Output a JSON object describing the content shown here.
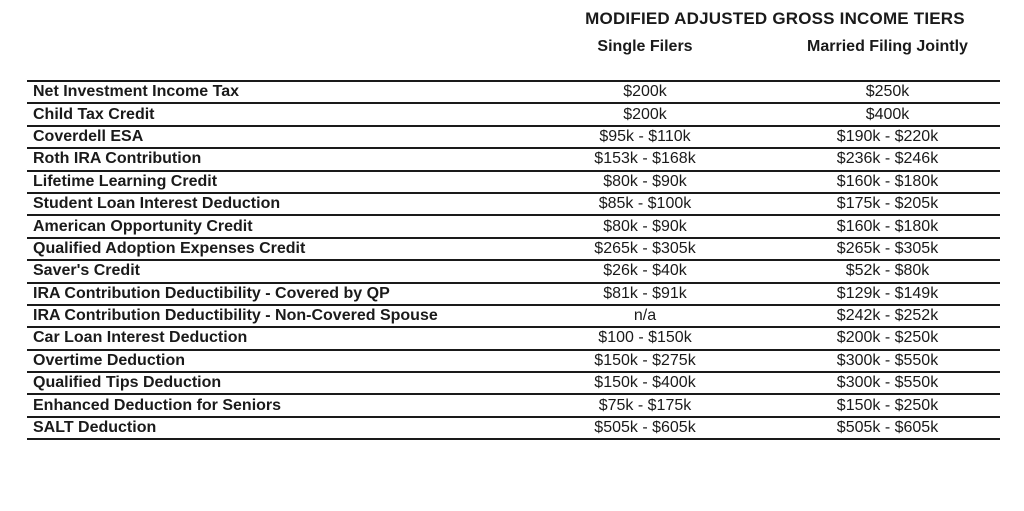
{
  "header": {
    "title": "MODIFIED ADJUSTED GROSS INCOME TIERS",
    "columns": [
      "Single Filers",
      "Married Filing Jointly"
    ]
  },
  "table": {
    "column_keys": [
      "label",
      "single",
      "married"
    ],
    "rows": [
      {
        "label": "Net Investment Income Tax",
        "single": "$200k",
        "married": "$250k"
      },
      {
        "label": "Child Tax Credit",
        "single": "$200k",
        "married": "$400k"
      },
      {
        "label": "Coverdell ESA",
        "single": "$95k - $110k",
        "married": "$190k - $220k"
      },
      {
        "label": "Roth IRA Contribution",
        "single": "$153k - $168k",
        "married": "$236k - $246k"
      },
      {
        "label": "Lifetime Learning Credit",
        "single": "$80k - $90k",
        "married": "$160k - $180k"
      },
      {
        "label": "Student Loan Interest Deduction",
        "single": "$85k - $100k",
        "married": "$175k - $205k"
      },
      {
        "label": "American Opportunity Credit",
        "single": "$80k - $90k",
        "married": "$160k - $180k"
      },
      {
        "label": "Qualified Adoption Expenses Credit",
        "single": "$265k - $305k",
        "married": "$265k - $305k"
      },
      {
        "label": "Saver's Credit",
        "single": "$26k - $40k",
        "married": "$52k - $80k"
      },
      {
        "label": "IRA Contribution Deductibility - Covered by QP",
        "single": "$81k - $91k",
        "married": "$129k - $149k"
      },
      {
        "label": "IRA Contribution Deductibility - Non-Covered Spouse",
        "single": "n/a",
        "married": "$242k - $252k"
      },
      {
        "label": "Car Loan Interest Deduction",
        "single": "$100 - $150k",
        "married": "$200k - $250k"
      },
      {
        "label": "Overtime Deduction",
        "single": "$150k - $275k",
        "married": "$300k - $550k"
      },
      {
        "label": "Qualified Tips Deduction",
        "single": "$150k - $400k",
        "married": "$300k - $550k"
      },
      {
        "label": "Enhanced Deduction for Seniors",
        "single": "$75k - $175k",
        "married": "$150k - $250k"
      },
      {
        "label": "SALT Deduction",
        "single": "$505k - $605k",
        "married": "$505k - $605k"
      }
    ]
  },
  "colors": {
    "text": "#1a1a1a",
    "border": "#1a1a1a",
    "background": "#ffffff"
  }
}
